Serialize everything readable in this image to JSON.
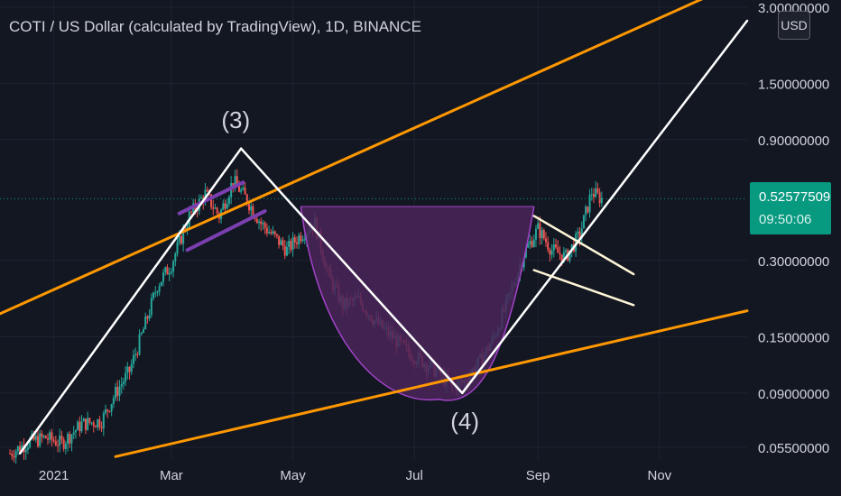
{
  "header": {
    "title": "COTI / US Dollar (calculated by TradingView), 1D, BINANCE",
    "currency_button": "USD"
  },
  "current_price": {
    "value": "0.52577509",
    "countdown": "09:50:06",
    "color": "#089981"
  },
  "wave_labels": [
    {
      "text": "(3)",
      "date": "2021-04-01",
      "price": 1.05
    },
    {
      "text": "(4)",
      "date": "2021-07-25",
      "price": 0.068
    }
  ],
  "colors": {
    "background": "#131722",
    "grid": "#1f2330",
    "up_candle": "#26a69a",
    "down_candle": "#ef5350",
    "orange_channel": "#ff9800",
    "white_lines": "#ffffff",
    "purple_fill": "#4a2459",
    "purple_line": "#a243c8",
    "text": "#d1d4dc"
  },
  "chart_data": {
    "type": "candlestick",
    "title": "COTI / US Dollar (calculated by TradingView), 1D, BINANCE",
    "x_axis": {
      "ticks": [
        "2021",
        "Mar",
        "May",
        "Jul",
        "Sep",
        "Nov"
      ],
      "tick_dates": [
        "2021-01-01",
        "2021-03-01",
        "2021-05-01",
        "2021-07-01",
        "2021-09-01",
        "2021-11-01"
      ],
      "range": [
        "2020-12-05",
        "2021-12-15"
      ]
    },
    "y_axis": {
      "scale": "log",
      "ticks": [
        "3.00000000",
        "1.50000000",
        "0.90000000",
        "0.30000000",
        "0.15000000",
        "0.09000000",
        "0.05500000"
      ],
      "tick_values": [
        3.0,
        1.5,
        0.9,
        0.3,
        0.15,
        0.09,
        0.055
      ],
      "range": [
        0.049,
        3.2
      ]
    },
    "price_path": [
      [
        "2020-12-10",
        0.052
      ],
      [
        "2020-12-20",
        0.058
      ],
      [
        "2020-12-28",
        0.06
      ],
      [
        "2021-01-05",
        0.057
      ],
      [
        "2021-01-15",
        0.068
      ],
      [
        "2021-01-25",
        0.07
      ],
      [
        "2021-02-01",
        0.09
      ],
      [
        "2021-02-08",
        0.11
      ],
      [
        "2021-02-15",
        0.16
      ],
      [
        "2021-02-22",
        0.24
      ],
      [
        "2021-03-01",
        0.29
      ],
      [
        "2021-03-10",
        0.45
      ],
      [
        "2021-03-18",
        0.55
      ],
      [
        "2021-03-25",
        0.45
      ],
      [
        "2021-04-01",
        0.62
      ],
      [
        "2021-04-08",
        0.52
      ],
      [
        "2021-04-15",
        0.42
      ],
      [
        "2021-04-22",
        0.37
      ],
      [
        "2021-04-28",
        0.33
      ],
      [
        "2021-05-05",
        0.38
      ],
      [
        "2021-05-12",
        0.42
      ],
      [
        "2021-05-19",
        0.26
      ],
      [
        "2021-05-26",
        0.2
      ],
      [
        "2021-06-03",
        0.21
      ],
      [
        "2021-06-12",
        0.17
      ],
      [
        "2021-06-20",
        0.15
      ],
      [
        "2021-06-28",
        0.13
      ],
      [
        "2021-07-05",
        0.12
      ],
      [
        "2021-07-12",
        0.11
      ],
      [
        "2021-07-20",
        0.095
      ],
      [
        "2021-07-26",
        0.1
      ],
      [
        "2021-08-03",
        0.12
      ],
      [
        "2021-08-10",
        0.15
      ],
      [
        "2021-08-18",
        0.22
      ],
      [
        "2021-08-25",
        0.32
      ],
      [
        "2021-09-01",
        0.4
      ],
      [
        "2021-09-08",
        0.33
      ],
      [
        "2021-09-15",
        0.31
      ],
      [
        "2021-09-22",
        0.38
      ],
      [
        "2021-09-28",
        0.56
      ],
      [
        "2021-10-03",
        0.525
      ]
    ],
    "drawings": {
      "orange_channel_upper": [
        [
          "2020-12-05",
          0.185
        ],
        [
          "2021-11-25",
          3.3
        ]
      ],
      "orange_channel_lower": [
        [
          "2021-02-01",
          0.0505
        ],
        [
          "2021-12-15",
          0.19
        ]
      ],
      "white_impulse_up": [
        [
          "2020-12-15",
          0.052
        ],
        [
          "2021-04-05",
          0.83
        ]
      ],
      "white_correction_down": [
        [
          "2021-04-05",
          0.83
        ],
        [
          "2021-07-25",
          0.09
        ]
      ],
      "white_breakout_up": [
        [
          "2021-07-25",
          0.09
        ],
        [
          "2021-12-15",
          2.65
        ]
      ],
      "flag_upper": [
        [
          "2021-08-30",
          0.45
        ],
        [
          "2021-10-19",
          0.265
        ]
      ],
      "flag_lower": [
        [
          "2021-08-30",
          0.275
        ],
        [
          "2021-10-19",
          0.2
        ]
      ],
      "purple_wedge_upper": [
        [
          "2021-03-05",
          0.46
        ],
        [
          "2021-04-06",
          0.61
        ]
      ],
      "purple_wedge_lower": [
        [
          "2021-03-09",
          0.33
        ],
        [
          "2021-04-17",
          0.47
        ]
      ],
      "cup_rim": [
        [
          "2021-05-05",
          0.49
        ],
        [
          "2021-08-30",
          0.49
        ]
      ],
      "cup_bottom": [
        "2021-07-13",
        0.085
      ]
    },
    "current_price_line": 0.52577509
  }
}
